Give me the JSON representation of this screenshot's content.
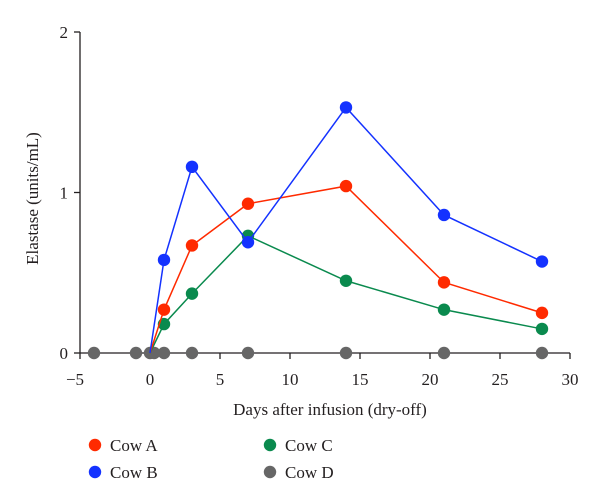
{
  "chart_data": {
    "type": "line",
    "title": "",
    "xlabel": "Days after infusion (dry-off)",
    "ylabel": "Elastase (units/mL)",
    "xlim": [
      -5,
      30
    ],
    "ylim": [
      0,
      2
    ],
    "xticks": [
      -5,
      0,
      5,
      10,
      15,
      20,
      25,
      30
    ],
    "yticks": [
      0,
      1,
      2
    ],
    "grid": false,
    "legend_position": "bottom",
    "series": [
      {
        "name": "Cow A",
        "color": "#ff2a00",
        "x": [
          0,
          1,
          3,
          7,
          14,
          21,
          28
        ],
        "y": [
          0,
          0.27,
          0.67,
          0.93,
          1.04,
          0.44,
          0.25
        ]
      },
      {
        "name": "Cow B",
        "color": "#1432ff",
        "x": [
          0,
          1,
          3,
          7,
          14,
          21,
          28
        ],
        "y": [
          0,
          0.58,
          1.16,
          0.69,
          1.53,
          0.86,
          0.57
        ]
      },
      {
        "name": "Cow C",
        "color": "#0a8a4e",
        "x": [
          0,
          1,
          3,
          7,
          14,
          21,
          28
        ],
        "y": [
          0,
          0.18,
          0.37,
          0.73,
          0.45,
          0.27,
          0.15
        ]
      },
      {
        "name": "Cow D",
        "color": "#666666",
        "x": [
          -4,
          -1,
          0,
          0.3,
          1,
          3,
          7,
          14,
          21,
          28
        ],
        "y": [
          0,
          0,
          0,
          0,
          0,
          0,
          0,
          0,
          0,
          0
        ]
      }
    ]
  }
}
